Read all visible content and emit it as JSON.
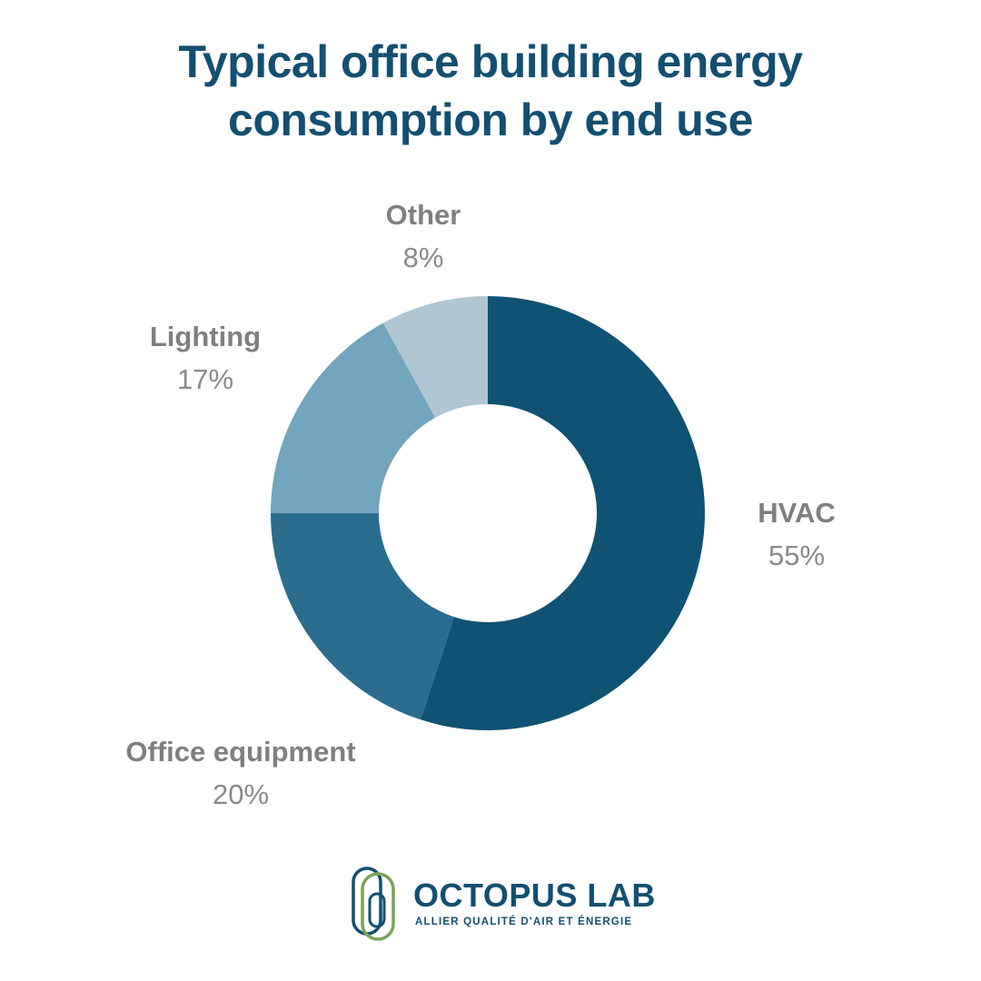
{
  "chart_data": {
    "type": "pie",
    "title_lines": [
      "Typical office building energy",
      "consumption by end use"
    ],
    "donut": true,
    "categories": [
      "HVAC",
      "Office equipment",
      "Lighting",
      "Other"
    ],
    "values": [
      55,
      20,
      17,
      8
    ],
    "value_labels": [
      "55%",
      "20%",
      "17%",
      "8%"
    ],
    "colors": [
      "#0f5273",
      "#2b6d8f",
      "#72a4bd",
      "#b0c6d2"
    ],
    "legend": "none"
  },
  "logo": {
    "name": "OCTOPUS LAB",
    "tagline": "ALLIER QUALITÉ D'AIR ET ÉNERGIE",
    "colors": [
      "#124f70",
      "#7aa35a"
    ]
  }
}
